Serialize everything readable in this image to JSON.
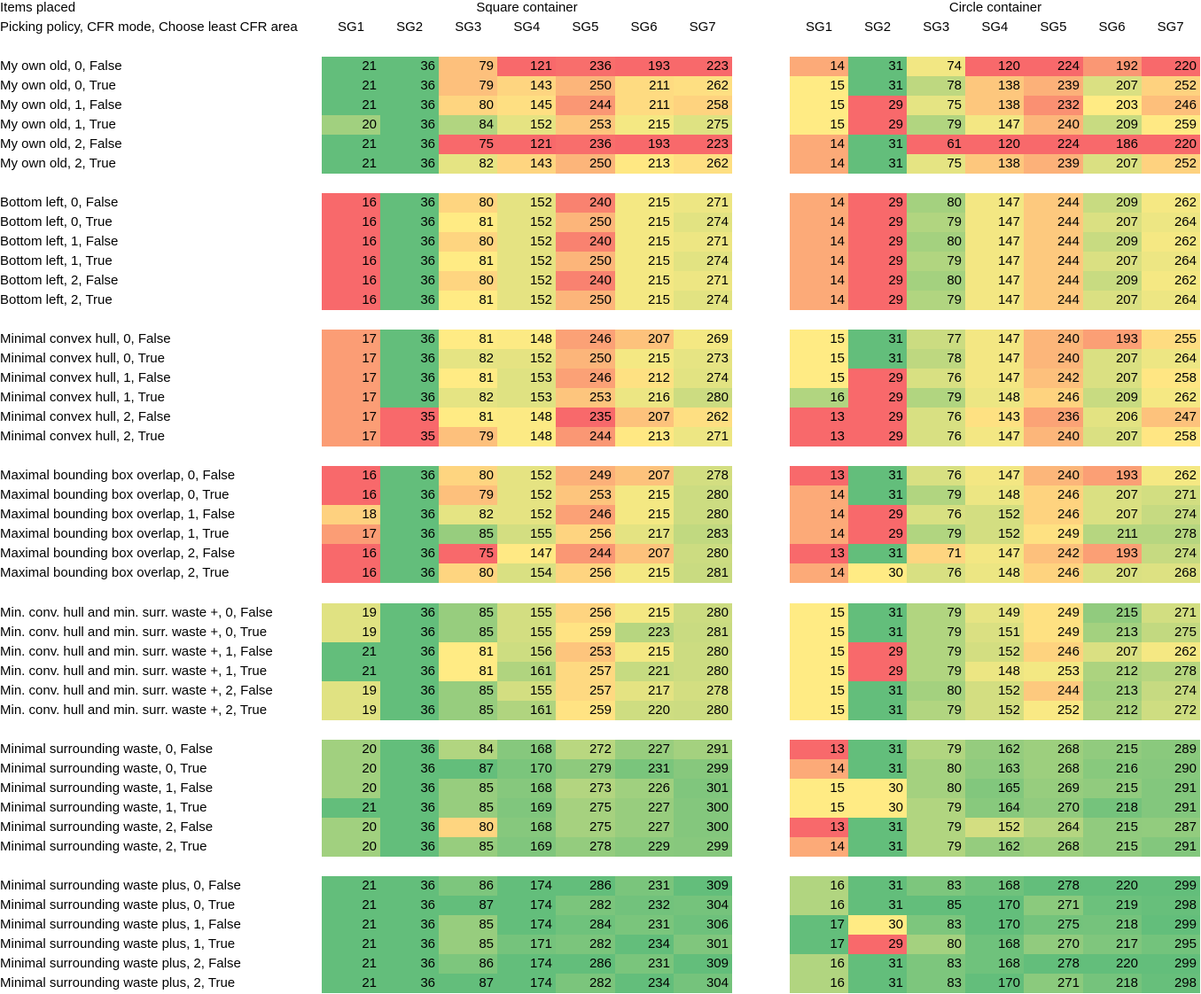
{
  "header": {
    "items_placed": "Items placed",
    "picking_policy": "Picking policy, CFR mode, Choose least CFR area",
    "square_title": "Square container",
    "circle_title": "Circle container",
    "columns": [
      "SG1",
      "SG2",
      "SG3",
      "SG4",
      "SG5",
      "SG6",
      "SG7"
    ]
  },
  "colors": {
    "green": "#63be7b",
    "yellow": "#ffeb84",
    "red": "#f8696b"
  },
  "groups": [
    {
      "rows": [
        {
          "label": "My own old, 0, False",
          "square": [
            21,
            36,
            79,
            121,
            236,
            193,
            223
          ],
          "circle": [
            14,
            31,
            74,
            120,
            224,
            192,
            220
          ]
        },
        {
          "label": "My own old, 0, True",
          "square": [
            21,
            36,
            79,
            143,
            250,
            211,
            262
          ],
          "circle": [
            15,
            31,
            78,
            138,
            239,
            207,
            252
          ]
        },
        {
          "label": "My own old, 1, False",
          "square": [
            21,
            36,
            80,
            145,
            244,
            211,
            258
          ],
          "circle": [
            15,
            29,
            75,
            138,
            232,
            203,
            246
          ]
        },
        {
          "label": "My own old, 1, True",
          "square": [
            20,
            36,
            84,
            152,
            253,
            215,
            275
          ],
          "circle": [
            15,
            29,
            79,
            147,
            240,
            209,
            259
          ]
        },
        {
          "label": "My own old, 2, False",
          "square": [
            21,
            36,
            75,
            121,
            236,
            193,
            223
          ],
          "circle": [
            14,
            31,
            61,
            120,
            224,
            186,
            220
          ]
        },
        {
          "label": "My own old, 2, True",
          "square": [
            21,
            36,
            82,
            143,
            250,
            213,
            262
          ],
          "circle": [
            14,
            31,
            75,
            138,
            239,
            207,
            252
          ]
        }
      ]
    },
    {
      "rows": [
        {
          "label": "Bottom left, 0, False",
          "square": [
            16,
            36,
            80,
            152,
            240,
            215,
            271
          ],
          "circle": [
            14,
            29,
            80,
            147,
            244,
            209,
            262
          ]
        },
        {
          "label": "Bottom left, 0, True",
          "square": [
            16,
            36,
            81,
            152,
            250,
            215,
            274
          ],
          "circle": [
            14,
            29,
            79,
            147,
            244,
            207,
            264
          ]
        },
        {
          "label": "Bottom left, 1, False",
          "square": [
            16,
            36,
            80,
            152,
            240,
            215,
            271
          ],
          "circle": [
            14,
            29,
            80,
            147,
            244,
            209,
            262
          ]
        },
        {
          "label": "Bottom left, 1, True",
          "square": [
            16,
            36,
            81,
            152,
            250,
            215,
            274
          ],
          "circle": [
            14,
            29,
            79,
            147,
            244,
            207,
            264
          ]
        },
        {
          "label": "Bottom left, 2, False",
          "square": [
            16,
            36,
            80,
            152,
            240,
            215,
            271
          ],
          "circle": [
            14,
            29,
            80,
            147,
            244,
            209,
            262
          ]
        },
        {
          "label": "Bottom left, 2, True",
          "square": [
            16,
            36,
            81,
            152,
            250,
            215,
            274
          ],
          "circle": [
            14,
            29,
            79,
            147,
            244,
            207,
            264
          ]
        }
      ]
    },
    {
      "rows": [
        {
          "label": "Minimal convex hull, 0, False",
          "square": [
            17,
            36,
            81,
            148,
            246,
            207,
            269
          ],
          "circle": [
            15,
            31,
            77,
            147,
            240,
            193,
            255
          ]
        },
        {
          "label": "Minimal convex hull, 0, True",
          "square": [
            17,
            36,
            82,
            152,
            250,
            215,
            273
          ],
          "circle": [
            15,
            31,
            78,
            147,
            240,
            207,
            264
          ]
        },
        {
          "label": "Minimal convex hull, 1, False",
          "square": [
            17,
            36,
            81,
            153,
            246,
            212,
            274
          ],
          "circle": [
            15,
            29,
            76,
            147,
            242,
            207,
            258
          ]
        },
        {
          "label": "Minimal convex hull, 1, True",
          "square": [
            17,
            36,
            82,
            153,
            253,
            216,
            280
          ],
          "circle": [
            16,
            29,
            79,
            148,
            246,
            209,
            262
          ]
        },
        {
          "label": "Minimal convex hull, 2, False",
          "square": [
            17,
            35,
            81,
            148,
            235,
            207,
            262
          ],
          "circle": [
            13,
            29,
            76,
            143,
            236,
            206,
            247
          ]
        },
        {
          "label": "Minimal convex hull, 2, True",
          "square": [
            17,
            35,
            79,
            148,
            244,
            213,
            271
          ],
          "circle": [
            13,
            29,
            76,
            147,
            240,
            207,
            258
          ]
        }
      ]
    },
    {
      "rows": [
        {
          "label": "Maximal bounding box overlap, 0, False",
          "square": [
            16,
            36,
            80,
            152,
            249,
            207,
            278
          ],
          "circle": [
            13,
            31,
            76,
            147,
            240,
            193,
            262
          ]
        },
        {
          "label": "Maximal bounding box overlap, 0, True",
          "square": [
            16,
            36,
            79,
            152,
            253,
            215,
            280
          ],
          "circle": [
            14,
            31,
            79,
            148,
            246,
            207,
            271
          ]
        },
        {
          "label": "Maximal bounding box overlap, 1, False",
          "square": [
            18,
            36,
            82,
            152,
            246,
            215,
            280
          ],
          "circle": [
            14,
            29,
            76,
            152,
            246,
            207,
            274
          ]
        },
        {
          "label": "Maximal bounding box overlap, 1, True",
          "square": [
            17,
            36,
            85,
            155,
            256,
            217,
            283
          ],
          "circle": [
            14,
            29,
            79,
            152,
            249,
            211,
            278
          ]
        },
        {
          "label": "Maximal bounding box overlap, 2, False",
          "square": [
            16,
            36,
            75,
            147,
            244,
            207,
            280
          ],
          "circle": [
            13,
            31,
            71,
            147,
            242,
            193,
            274
          ]
        },
        {
          "label": "Maximal bounding box overlap, 2, True",
          "square": [
            16,
            36,
            80,
            154,
            256,
            215,
            281
          ],
          "circle": [
            14,
            30,
            76,
            148,
            246,
            207,
            268
          ]
        }
      ]
    },
    {
      "rows": [
        {
          "label": "Min. conv. hull and min. surr. waste +, 0, False",
          "square": [
            19,
            36,
            85,
            155,
            256,
            215,
            280
          ],
          "circle": [
            15,
            31,
            79,
            149,
            249,
            215,
            271
          ]
        },
        {
          "label": "Min. conv. hull and min. surr. waste +, 0, True",
          "square": [
            19,
            36,
            85,
            155,
            259,
            223,
            281
          ],
          "circle": [
            15,
            31,
            79,
            151,
            249,
            213,
            275
          ]
        },
        {
          "label": "Min. conv. hull and min. surr. waste +, 1, False",
          "square": [
            21,
            36,
            81,
            156,
            253,
            215,
            280
          ],
          "circle": [
            15,
            29,
            79,
            152,
            246,
            207,
            262
          ]
        },
        {
          "label": "Min. conv. hull and min. surr. waste +, 1, True",
          "square": [
            21,
            36,
            81,
            161,
            257,
            221,
            280
          ],
          "circle": [
            15,
            29,
            79,
            148,
            253,
            212,
            278
          ]
        },
        {
          "label": "Min. conv. hull and min. surr. waste +, 2, False",
          "square": [
            19,
            36,
            85,
            155,
            257,
            217,
            278
          ],
          "circle": [
            15,
            31,
            80,
            152,
            244,
            213,
            274
          ]
        },
        {
          "label": "Min. conv. hull and min. surr. waste +, 2, True",
          "square": [
            19,
            36,
            85,
            161,
            259,
            220,
            280
          ],
          "circle": [
            15,
            31,
            79,
            152,
            252,
            212,
            272
          ]
        }
      ]
    },
    {
      "rows": [
        {
          "label": "Minimal surrounding waste, 0, False",
          "square": [
            20,
            36,
            84,
            168,
            272,
            227,
            291
          ],
          "circle": [
            13,
            31,
            79,
            162,
            268,
            215,
            289
          ]
        },
        {
          "label": "Minimal surrounding waste, 0, True",
          "square": [
            20,
            36,
            87,
            170,
            279,
            231,
            299
          ],
          "circle": [
            14,
            31,
            80,
            163,
            268,
            216,
            290
          ]
        },
        {
          "label": "Minimal surrounding waste, 1, False",
          "square": [
            20,
            36,
            85,
            168,
            273,
            226,
            301
          ],
          "circle": [
            15,
            30,
            80,
            165,
            269,
            215,
            291
          ]
        },
        {
          "label": "Minimal surrounding waste, 1, True",
          "square": [
            21,
            36,
            85,
            169,
            275,
            227,
            300
          ],
          "circle": [
            15,
            30,
            79,
            164,
            270,
            218,
            291
          ]
        },
        {
          "label": "Minimal surrounding waste, 2, False",
          "square": [
            20,
            36,
            80,
            168,
            275,
            227,
            300
          ],
          "circle": [
            13,
            31,
            79,
            152,
            264,
            215,
            287
          ]
        },
        {
          "label": "Minimal surrounding waste, 2, True",
          "square": [
            20,
            36,
            85,
            169,
            278,
            229,
            299
          ],
          "circle": [
            14,
            31,
            79,
            162,
            268,
            215,
            291
          ]
        }
      ]
    },
    {
      "rows": [
        {
          "label": "Minimal surrounding waste plus, 0, False",
          "square": [
            21,
            36,
            86,
            174,
            286,
            231,
            309
          ],
          "circle": [
            16,
            31,
            83,
            168,
            278,
            220,
            299
          ]
        },
        {
          "label": "Minimal surrounding waste plus, 0, True",
          "square": [
            21,
            36,
            87,
            174,
            282,
            232,
            304
          ],
          "circle": [
            16,
            31,
            85,
            170,
            271,
            219,
            298
          ]
        },
        {
          "label": "Minimal surrounding waste plus, 1, False",
          "square": [
            21,
            36,
            85,
            174,
            284,
            231,
            306
          ],
          "circle": [
            17,
            30,
            83,
            170,
            275,
            218,
            299
          ]
        },
        {
          "label": "Minimal surrounding waste plus, 1, True",
          "square": [
            21,
            36,
            85,
            171,
            282,
            234,
            301
          ],
          "circle": [
            17,
            29,
            80,
            168,
            270,
            217,
            295
          ]
        },
        {
          "label": "Minimal surrounding waste plus, 2, False",
          "square": [
            21,
            36,
            86,
            174,
            286,
            231,
            309
          ],
          "circle": [
            16,
            31,
            83,
            168,
            278,
            220,
            299
          ]
        },
        {
          "label": "Minimal surrounding waste plus, 2, True",
          "square": [
            21,
            36,
            87,
            174,
            282,
            234,
            304
          ],
          "circle": [
            16,
            31,
            83,
            170,
            271,
            218,
            298
          ]
        }
      ]
    }
  ]
}
